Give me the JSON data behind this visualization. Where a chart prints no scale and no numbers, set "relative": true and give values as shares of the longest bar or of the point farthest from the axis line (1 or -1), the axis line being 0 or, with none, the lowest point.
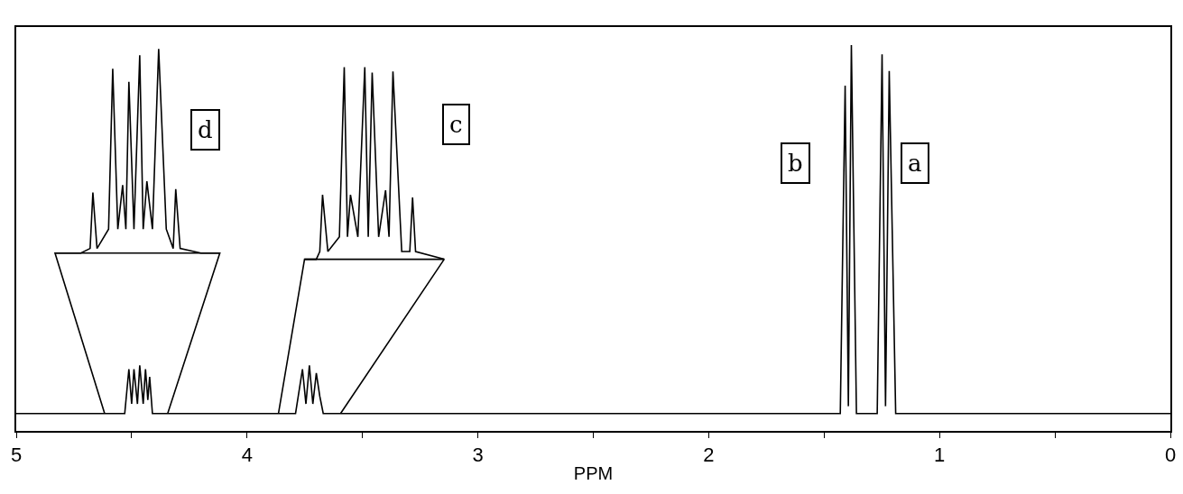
{
  "chart_data": {
    "type": "line",
    "relative": true,
    "xlabel": "PPM",
    "xlim": [
      5,
      0
    ],
    "xticks": [
      5,
      {
        "value": 4.5,
        "label": null
      },
      4,
      {
        "value": 3.5,
        "label": null
      },
      3,
      {
        "value": 2.5,
        "label": null
      },
      2,
      {
        "value": 1.5,
        "label": null
      },
      1,
      {
        "value": 0.5,
        "label": null
      },
      0
    ],
    "line_style": "solid",
    "series": [
      {
        "color": "#000000",
        "x": [
          5,
          4.53,
          4.512,
          4.5,
          4.49,
          4.475,
          4.465,
          4.45,
          4.44,
          4.43,
          4.422,
          4.41,
          3.79,
          3.76,
          3.745,
          3.73,
          3.715,
          3.7,
          3.685,
          3.67,
          1.43,
          1.409,
          1.395,
          1.382,
          1.36,
          1.27,
          1.249,
          1.234,
          1.218,
          1.19,
          0
        ],
        "values": [
          0.045,
          0.045,
          0.16,
          0.07,
          0.16,
          0.07,
          0.17,
          0.07,
          0.16,
          0.08,
          0.14,
          0.045,
          0.045,
          0.16,
          0.07,
          0.17,
          0.07,
          0.15,
          0.09,
          0.045,
          0.045,
          0.895,
          0.064,
          1.0,
          0.045,
          0.045,
          0.976,
          0.064,
          0.933,
          0.045,
          0.045
        ]
      },
      {
        "color": "#000000",
        "x": [
          4.832,
          4.72,
          4.68,
          4.668,
          4.65,
          4.6,
          4.582,
          4.56,
          4.539,
          4.525,
          4.512,
          4.49,
          4.465,
          4.45,
          4.434,
          4.41,
          4.383,
          4.35,
          4.32,
          4.309,
          4.29,
          4.2,
          4.118
        ],
        "values": [
          0.461,
          0.461,
          0.473,
          0.618,
          0.473,
          0.523,
          0.939,
          0.523,
          0.637,
          0.523,
          0.905,
          0.523,
          0.974,
          0.523,
          0.647,
          0.523,
          0.99,
          0.523,
          0.473,
          0.627,
          0.473,
          0.461,
          0.461
        ]
      },
      {
        "color": "#000000",
        "x": [
          3.751,
          3.7,
          3.685,
          3.673,
          3.65,
          3.6,
          3.579,
          3.565,
          3.552,
          3.52,
          3.49,
          3.475,
          3.458,
          3.43,
          3.4,
          3.385,
          3.368,
          3.33,
          3.295,
          3.283,
          3.27,
          3.146
        ],
        "values": [
          0.445,
          0.445,
          0.465,
          0.612,
          0.465,
          0.503,
          0.943,
          0.503,
          0.612,
          0.503,
          0.943,
          0.503,
          0.929,
          0.503,
          0.624,
          0.503,
          0.932,
          0.465,
          0.465,
          0.605,
          0.465,
          0.445
        ]
      },
      {
        "color": "#000000",
        "x": [
          4.617,
          4.832,
          4.118,
          4.344
        ],
        "values": [
          0.045,
          0.461,
          0.461,
          0.045
        ]
      },
      {
        "color": "#000000",
        "x": [
          3.864,
          3.751,
          3.146,
          3.595
        ],
        "values": [
          0.045,
          0.445,
          0.445,
          0.045
        ]
      }
    ],
    "annotations": [
      {
        "text": "d",
        "x": 4.18,
        "y": 0.78
      },
      {
        "text": "c",
        "x": 3.095,
        "y": 0.795
      },
      {
        "text": "b",
        "x": 1.624,
        "y": 0.694
      },
      {
        "text": "a",
        "x": 1.105,
        "y": 0.694
      }
    ]
  }
}
